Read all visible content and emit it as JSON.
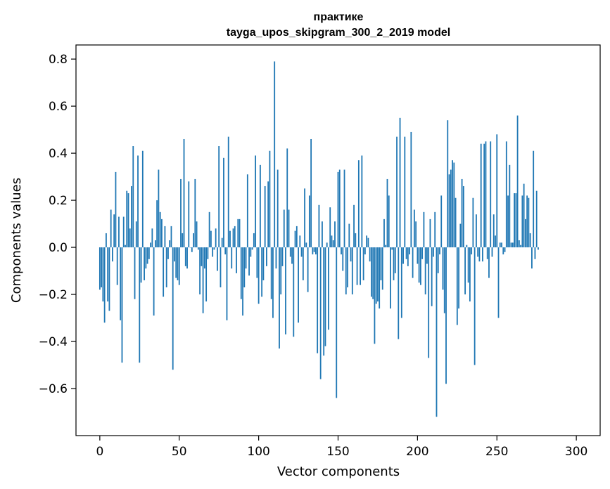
{
  "chart_data": {
    "type": "bar",
    "title": "практике",
    "subtitle": "tayga_upos_skipgram_300_2_2019 model",
    "xlabel": "Vector components",
    "ylabel": "Components values",
    "xlim": [
      -15,
      315
    ],
    "ylim": [
      -0.8,
      0.86
    ],
    "xticks": [
      0,
      50,
      100,
      150,
      200,
      250,
      300
    ],
    "yticks": [
      -0.6,
      -0.4,
      -0.2,
      0.0,
      0.2,
      0.4,
      0.6,
      0.8
    ],
    "xtick_labels": [
      "0",
      "50",
      "100",
      "150",
      "200",
      "250",
      "300"
    ],
    "ytick_labels": [
      "−0.6",
      "−0.4",
      "−0.2",
      "0.0",
      "0.2",
      "0.4",
      "0.6",
      "0.8"
    ],
    "grid": false,
    "bar_color": "#1f77b4",
    "values": [
      -0.18,
      -0.17,
      -0.23,
      -0.32,
      0.06,
      -0.23,
      -0.27,
      0.16,
      -0.06,
      0.14,
      0.32,
      -0.16,
      0.13,
      -0.31,
      -0.49,
      0.13,
      0.01,
      0.24,
      0.23,
      0.08,
      0.26,
      0.43,
      -0.22,
      0.11,
      0.39,
      -0.49,
      -0.15,
      0.41,
      -0.14,
      -0.09,
      -0.07,
      -0.05,
      0.02,
      0.08,
      -0.29,
      0.03,
      0.2,
      0.33,
      0.15,
      0.12,
      -0.21,
      0.09,
      -0.17,
      -0.05,
      0.03,
      0.09,
      -0.52,
      -0.06,
      -0.13,
      -0.14,
      -0.16,
      0.29,
      0.06,
      0.46,
      -0.08,
      -0.09,
      0.28,
      0.0,
      -0.02,
      0.06,
      0.29,
      0.11,
      -0.01,
      -0.2,
      -0.08,
      -0.28,
      -0.09,
      -0.23,
      -0.05,
      0.15,
      0.07,
      -0.04,
      -0.01,
      0.08,
      -0.1,
      0.43,
      -0.17,
      0.04,
      0.38,
      -0.03,
      -0.31,
      0.47,
      0.07,
      -0.09,
      0.08,
      0.09,
      -0.11,
      0.12,
      0.12,
      -0.22,
      -0.29,
      -0.17,
      -0.09,
      0.31,
      -0.12,
      -0.04,
      -0.01,
      0.06,
      0.39,
      -0.13,
      -0.24,
      0.35,
      -0.21,
      -0.14,
      0.26,
      -0.08,
      0.28,
      0.41,
      -0.22,
      -0.3,
      0.79,
      -0.09,
      0.33,
      -0.43,
      -0.2,
      -0.08,
      0.16,
      -0.37,
      0.42,
      0.16,
      -0.04,
      -0.07,
      -0.38,
      0.07,
      0.09,
      -0.32,
      0.05,
      -0.04,
      -0.14,
      0.25,
      0.02,
      -0.19,
      0.22,
      0.46,
      -0.03,
      -0.02,
      -0.03,
      -0.45,
      0.18,
      -0.56,
      0.11,
      -0.46,
      -0.42,
      0.02,
      -0.35,
      0.17,
      0.05,
      0.03,
      0.11,
      -0.64,
      0.32,
      0.33,
      -0.03,
      -0.1,
      0.33,
      -0.2,
      -0.17,
      0.1,
      -0.06,
      -0.2,
      0.18,
      0.06,
      -0.16,
      0.37,
      -0.16,
      0.39,
      -0.14,
      -0.03,
      0.05,
      0.04,
      -0.06,
      -0.21,
      -0.22,
      -0.41,
      -0.24,
      -0.23,
      -0.26,
      -0.14,
      -0.18,
      0.12,
      0.01,
      0.29,
      0.22,
      -0.26,
      -0.01,
      -0.14,
      -0.11,
      0.47,
      -0.39,
      0.55,
      -0.3,
      -0.07,
      0.47,
      -0.05,
      -0.08,
      -0.03,
      0.49,
      -0.13,
      0.16,
      0.11,
      -0.07,
      -0.15,
      -0.16,
      -0.05,
      0.15,
      -0.2,
      -0.07,
      -0.47,
      0.12,
      -0.25,
      -0.04,
      0.15,
      -0.72,
      -0.11,
      -0.03,
      0.22,
      -0.18,
      -0.28,
      -0.58,
      0.54,
      0.31,
      0.33,
      0.37,
      0.36,
      0.21,
      -0.33,
      -0.26,
      0.1,
      0.29,
      0.26,
      -0.2,
      0.01,
      -0.15,
      -0.23,
      -0.03,
      0.21,
      -0.5,
      0.14,
      -0.04,
      -0.06,
      0.44,
      -0.06,
      0.44,
      0.45,
      -0.05,
      -0.13,
      0.45,
      -0.04,
      0.14,
      0.05,
      0.48,
      -0.3,
      0.02,
      0.02,
      -0.03,
      -0.02,
      0.45,
      0.22,
      0.35,
      0.02,
      0.02,
      0.23,
      0.23,
      0.56,
      0.03,
      0.01,
      0.22,
      0.27,
      0.12,
      0.22,
      0.21,
      0.06,
      -0.09,
      0.41,
      -0.05,
      0.24,
      -0.01
    ]
  }
}
